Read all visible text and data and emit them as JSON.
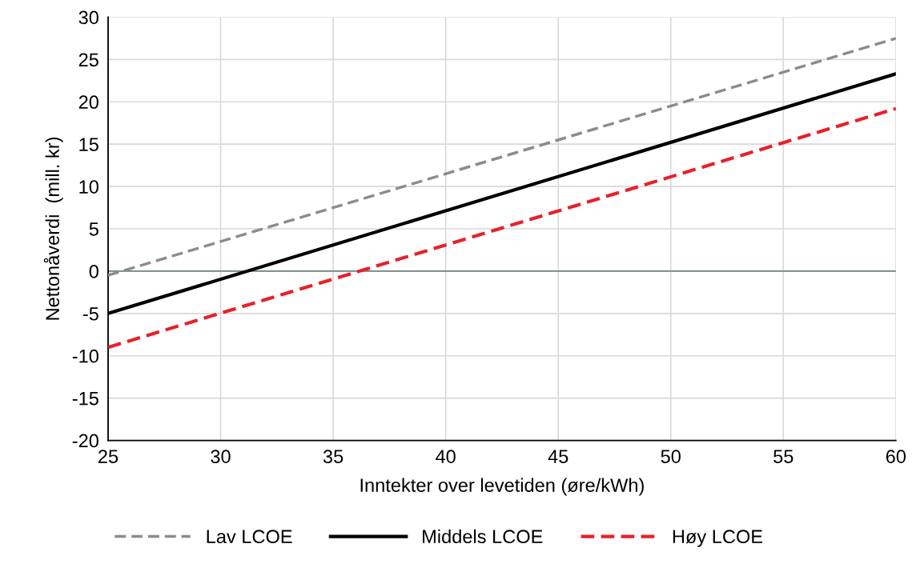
{
  "chart_data": {
    "type": "line",
    "xlabel": "Inntekter over levetiden (øre/kWh)",
    "ylabel": "Nettonåverdi  (mill. kr)",
    "x": [
      25,
      60
    ],
    "series": [
      {
        "name": "Lav LCOE",
        "color": "#8c8c8c",
        "line_style": "dashed",
        "values": [
          -0.5,
          27.5
        ]
      },
      {
        "name": "Middels LCOE",
        "color": "#000000",
        "line_style": "solid",
        "values": [
          -5.0,
          23.3
        ]
      },
      {
        "name": "Høy LCOE",
        "color": "#e8202a",
        "line_style": "dashed",
        "values": [
          -9.0,
          19.2
        ]
      }
    ],
    "xlim": [
      25,
      60
    ],
    "xticks": [
      25,
      30,
      35,
      40,
      45,
      50,
      55,
      60
    ],
    "ylim": [
      -20,
      30
    ],
    "yticks": [
      -20,
      -15,
      -10,
      -5,
      0,
      5,
      10,
      15,
      20,
      25,
      30
    ],
    "ref_lines": [
      {
        "axis": "y",
        "value": 0,
        "color": "#6f8585"
      }
    ],
    "grid": true,
    "legend": "bottom",
    "marker": "none"
  }
}
